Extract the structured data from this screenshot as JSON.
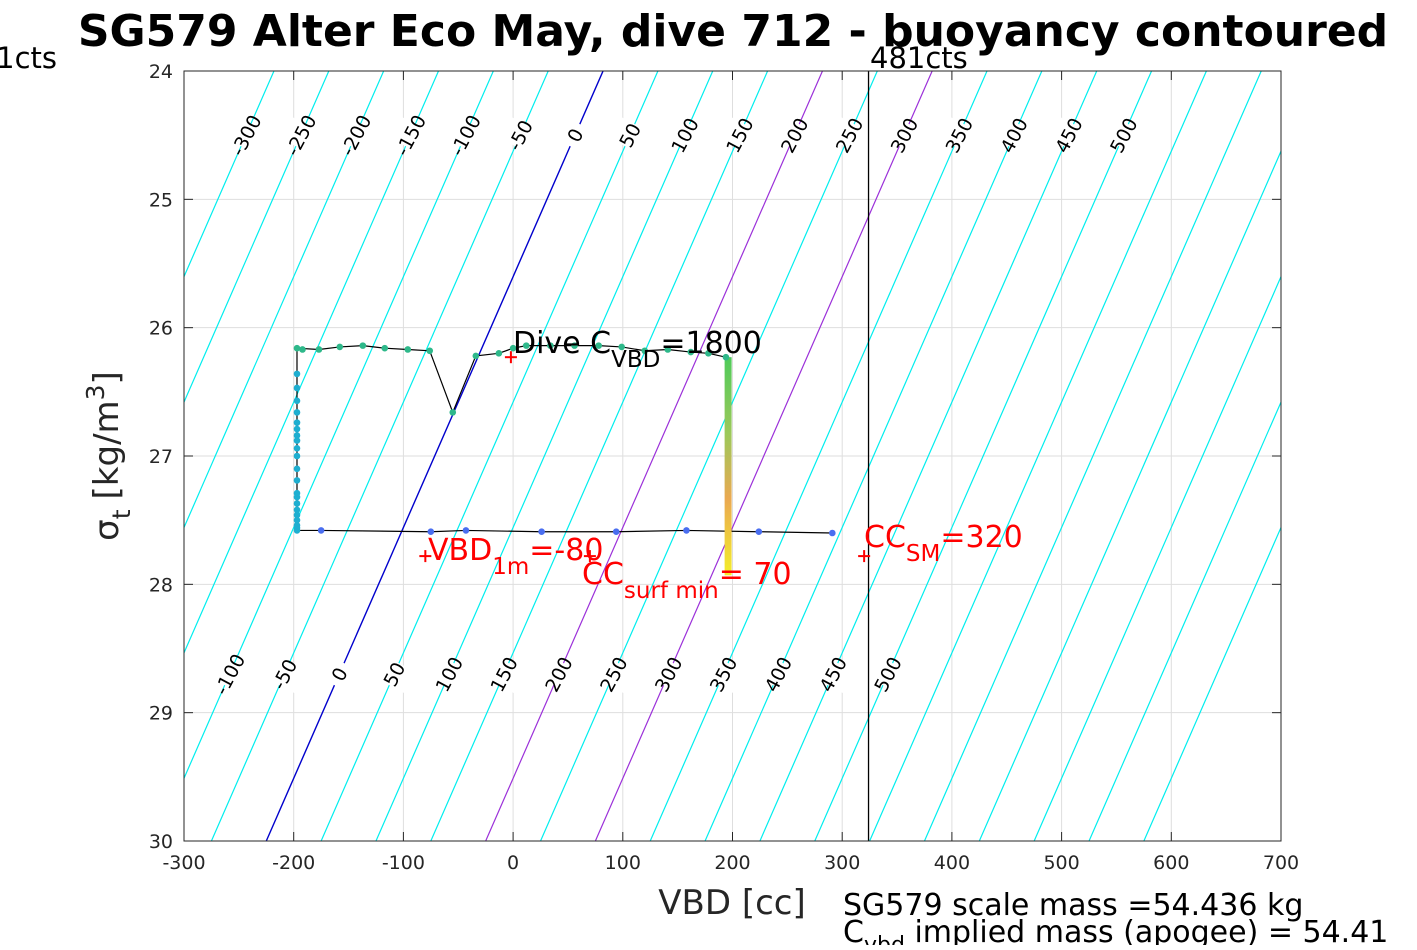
{
  "colors": {
    "contour": "#00eeee",
    "zero_contour": "#0000cc",
    "highlight_contour": "#9b30d9",
    "profile_line": "#000000",
    "annotation": "#ff0000",
    "grid": "#dedede"
  },
  "chart_data": {
    "type": "scatter",
    "title": "SG579 Alter Eco May, dive 712 - buoyancy contoured",
    "xlabel": "VBD [cc]",
    "ylabel_symbol": "σ",
    "ylabel_sub": "t",
    "ylabel_unit": "[kg/m",
    "ylabel_sup": "3",
    "ylabel_close": "]",
    "xlim": [
      -300,
      700
    ],
    "ylim": [
      24,
      30
    ],
    "y_reversed": true,
    "grid": true,
    "x_ticks": [
      "-300",
      "-200",
      "-100",
      "0",
      "100",
      "200",
      "300",
      "400",
      "500",
      "600",
      "700"
    ],
    "x_tick_values": [
      -300,
      -200,
      -100,
      0,
      100,
      200,
      300,
      400,
      500,
      600,
      700
    ],
    "y_ticks": [
      "24",
      "25",
      "26",
      "27",
      "28",
      "29",
      "30"
    ],
    "y_tick_values": [
      24,
      25,
      26,
      27,
      28,
      29,
      30
    ],
    "vline": {
      "x": 324,
      "label_right": "481cts",
      "label_left": "1cts"
    },
    "contours": {
      "values": [
        -300,
        -250,
        -200,
        -150,
        -100,
        -50,
        0,
        50,
        100,
        150,
        200,
        250,
        300,
        350,
        400,
        450,
        500,
        550,
        600,
        650,
        700,
        750,
        800
      ],
      "zero_vbd_at_top": 82,
      "zero_vbd_at_bottom": -225,
      "highlight": [
        200,
        300
      ],
      "top_labels": [
        "-300",
        "-250",
        "-200",
        "-150",
        "-100",
        "-50",
        "0",
        "50",
        "100",
        "150",
        "200",
        "250",
        "300",
        "350",
        "400",
        "450",
        "500"
      ],
      "bottom_labels": [
        "-100",
        "-50",
        "0",
        "50",
        "100",
        "150",
        "200",
        "250",
        "300",
        "350",
        "400",
        "450",
        "500"
      ]
    },
    "profile": {
      "line": [
        [
          -197,
          26.16
        ],
        [
          -197,
          27.58
        ],
        [
          -175,
          27.58
        ],
        [
          -75,
          27.59
        ],
        [
          -43,
          27.58
        ],
        [
          26,
          27.59
        ],
        [
          94,
          27.59
        ],
        [
          158,
          27.58
        ],
        [
          224,
          27.59
        ],
        [
          291,
          27.6
        ]
      ],
      "upper_line": [
        [
          -197,
          26.16
        ],
        [
          -177,
          26.17
        ],
        [
          -158,
          26.15
        ],
        [
          -137,
          26.14
        ],
        [
          -117,
          26.16
        ],
        [
          -96,
          26.17
        ],
        [
          -76,
          26.18
        ],
        [
          -55,
          26.66
        ],
        [
          -34,
          26.22
        ],
        [
          -13,
          26.2
        ],
        [
          0,
          26.16
        ],
        [
          12,
          26.14
        ],
        [
          34,
          26.14
        ],
        [
          56,
          26.14
        ],
        [
          78,
          26.14
        ],
        [
          99,
          26.15
        ],
        [
          120,
          26.18
        ],
        [
          141,
          26.17
        ],
        [
          162,
          26.19
        ],
        [
          178,
          26.2
        ],
        [
          194,
          26.23
        ]
      ],
      "green_points": [
        [
          -197,
          26.16
        ],
        [
          -192,
          26.17
        ],
        [
          -177,
          26.17
        ],
        [
          -158,
          26.15
        ],
        [
          -137,
          26.14
        ],
        [
          -117,
          26.16
        ],
        [
          -96,
          26.17
        ],
        [
          -76,
          26.18
        ],
        [
          -55,
          26.66
        ],
        [
          -34,
          26.22
        ],
        [
          -13,
          26.2
        ],
        [
          0,
          26.16
        ],
        [
          12,
          26.14
        ],
        [
          34,
          26.14
        ],
        [
          56,
          26.14
        ],
        [
          78,
          26.14
        ],
        [
          99,
          26.15
        ],
        [
          120,
          26.18
        ],
        [
          141,
          26.17
        ],
        [
          162,
          26.19
        ],
        [
          178,
          26.2
        ],
        [
          194,
          26.23
        ]
      ],
      "teal_points": [
        [
          -197,
          26.36
        ],
        [
          -197,
          26.47
        ],
        [
          -197,
          26.57
        ],
        [
          -197,
          26.66
        ],
        [
          -197,
          26.74
        ],
        [
          -197,
          26.79
        ],
        [
          -197,
          26.84
        ],
        [
          -197,
          26.88
        ],
        [
          -197,
          26.94
        ],
        [
          -197,
          27.0
        ],
        [
          -197,
          27.1
        ],
        [
          -197,
          27.19
        ],
        [
          -197,
          27.29
        ],
        [
          -197,
          27.32
        ],
        [
          -197,
          27.37
        ],
        [
          -197,
          27.42
        ],
        [
          -197,
          27.46
        ],
        [
          -197,
          27.5
        ],
        [
          -197,
          27.54
        ],
        [
          -197,
          27.56
        ],
        [
          -197,
          27.58
        ]
      ],
      "blue_points": [
        [
          -175,
          27.58
        ],
        [
          -75,
          27.59
        ],
        [
          -43,
          27.58
        ],
        [
          26,
          27.59
        ],
        [
          94,
          27.59
        ],
        [
          158,
          27.58
        ],
        [
          224,
          27.59
        ],
        [
          291,
          27.6
        ]
      ],
      "thick_segment": {
        "x": 196,
        "y_top": 26.23,
        "y_bottom": 27.93
      }
    },
    "markers": [
      {
        "x": -2,
        "y": 26.23
      },
      {
        "x": -80,
        "y": 27.78
      },
      {
        "x": 70,
        "y": 27.78
      },
      {
        "x": 320,
        "y": 27.78
      }
    ],
    "annotations": {
      "dive_c_vbd": {
        "text": "Dive C",
        "sub": "VBD",
        "value": "=1800"
      },
      "vbd_1m": {
        "text": "VBD",
        "sub": "1m",
        "value": "=-80"
      },
      "cc_surf_min": {
        "text": "CC",
        "sub": "surf min",
        "value": "= 70"
      },
      "cc_sm": {
        "text": "CC",
        "sub": "SM",
        "value": "=320"
      }
    },
    "footer": {
      "line1": "SG579 scale mass =54.436 kg",
      "line2_c": "C",
      "line2_sub": "vbd",
      "line2_rest": " implied mass (apogee) = 54.41"
    }
  }
}
